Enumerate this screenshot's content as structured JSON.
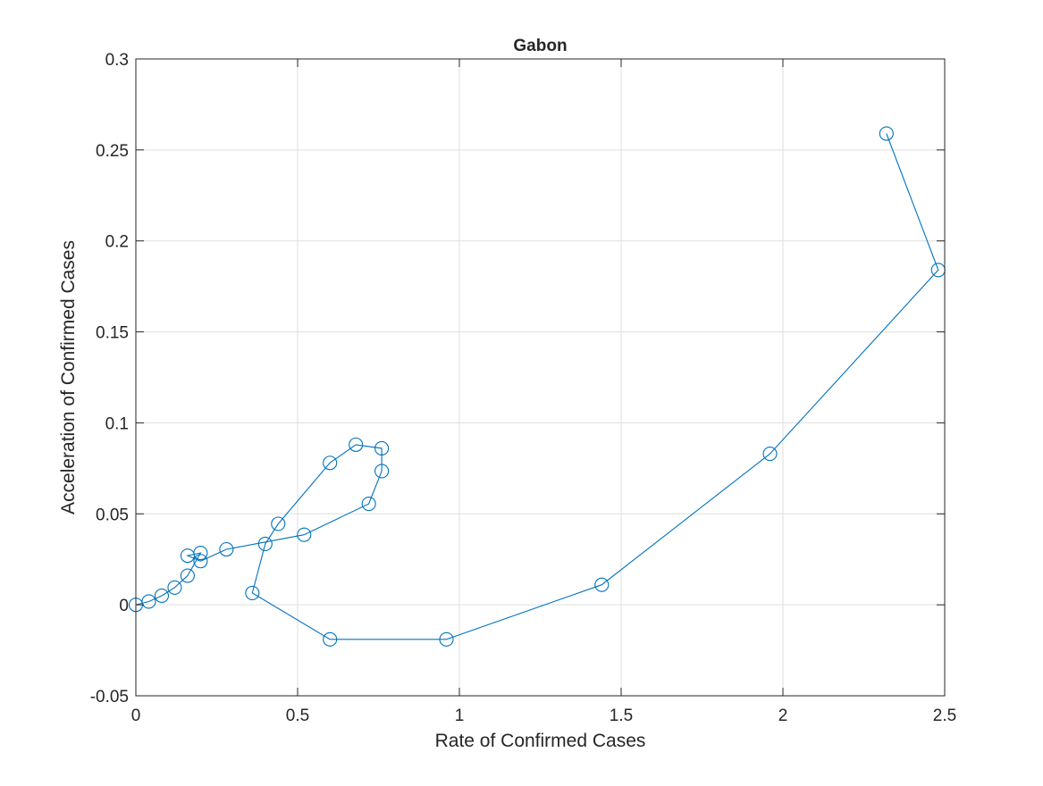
{
  "chart_data": {
    "type": "line",
    "title": "Gabon",
    "xlabel": "Rate of Confirmed Cases",
    "ylabel": "Acceleration of Confirmed Cases",
    "xlim": [
      0,
      2.5
    ],
    "ylim": [
      -0.05,
      0.3
    ],
    "xticks": [
      0,
      0.5,
      1,
      1.5,
      2,
      2.5
    ],
    "xtick_labels": [
      "0",
      "0.5",
      "1",
      "1.5",
      "2",
      "2.5"
    ],
    "yticks": [
      -0.05,
      0,
      0.05,
      0.1,
      0.15,
      0.2,
      0.25,
      0.3
    ],
    "ytick_labels": [
      "-0.05",
      "0",
      "0.05",
      "0.1",
      "0.15",
      "0.2",
      "0.25",
      "0.3"
    ],
    "grid": true,
    "marker": "circle",
    "series": [
      {
        "color": "#0072bd",
        "x": [
          0,
          0.04,
          0.08,
          0.12,
          0.16,
          0.2,
          0.16,
          0.2,
          0.28,
          0.52,
          0.72,
          0.76,
          0.76,
          0.68,
          0.6,
          0.44,
          0.4,
          0.36,
          0.6,
          0.96,
          1.44,
          1.96,
          2.48,
          2.32
        ],
        "y": [
          0,
          0.0018,
          0.005,
          0.0095,
          0.016,
          0.0285,
          0.027,
          0.024,
          0.0305,
          0.0385,
          0.0555,
          0.0735,
          0.086,
          0.088,
          0.078,
          0.0445,
          0.0335,
          0.0065,
          -0.019,
          -0.019,
          0.011,
          0.083,
          0.184,
          0.259
        ]
      }
    ]
  }
}
